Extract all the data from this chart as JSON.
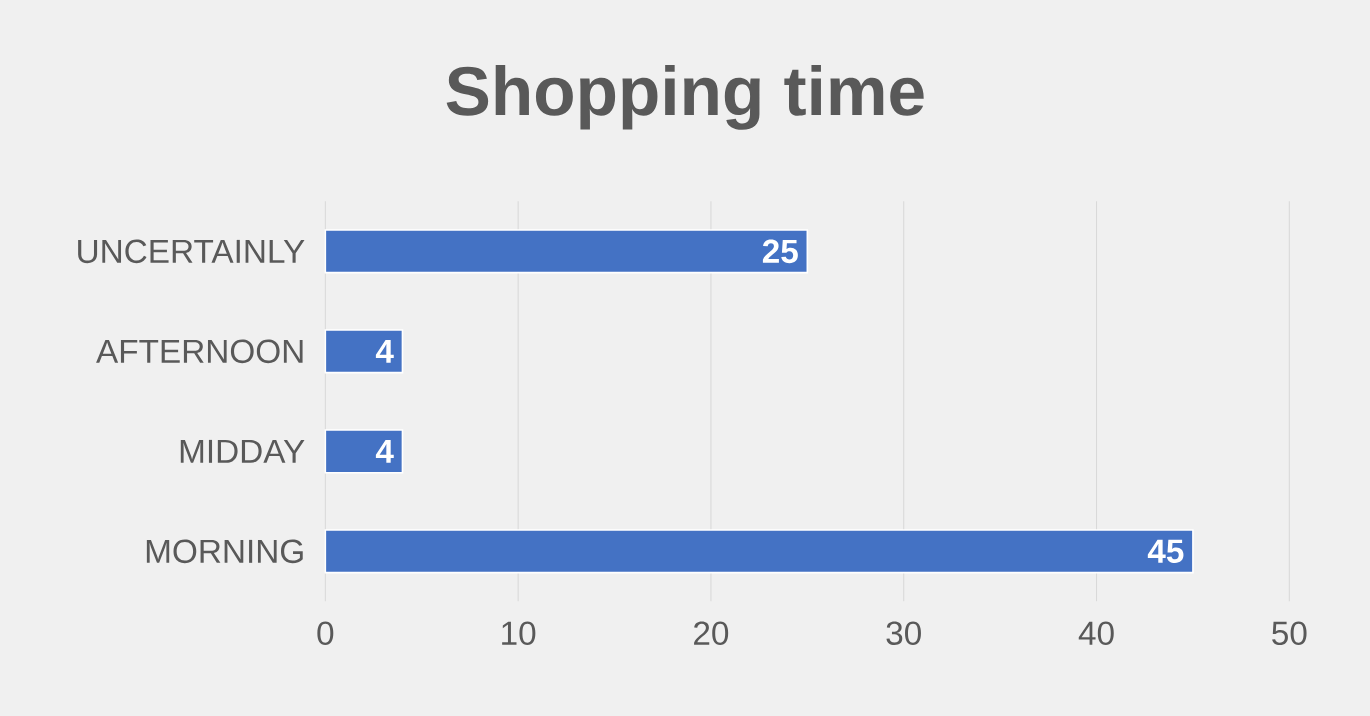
{
  "chart_data": {
    "type": "bar",
    "orientation": "horizontal",
    "title": "Shopping time",
    "categories": [
      "UNCERTAINLY",
      "AFTERNOON",
      "MIDDAY",
      "MORNING"
    ],
    "values": [
      25,
      4,
      4,
      45
    ],
    "color": "#4472c4",
    "data_labels": true,
    "xlim": [
      0,
      50
    ],
    "xticks": [
      0,
      10,
      20,
      30,
      40,
      50
    ],
    "grid": "x"
  }
}
